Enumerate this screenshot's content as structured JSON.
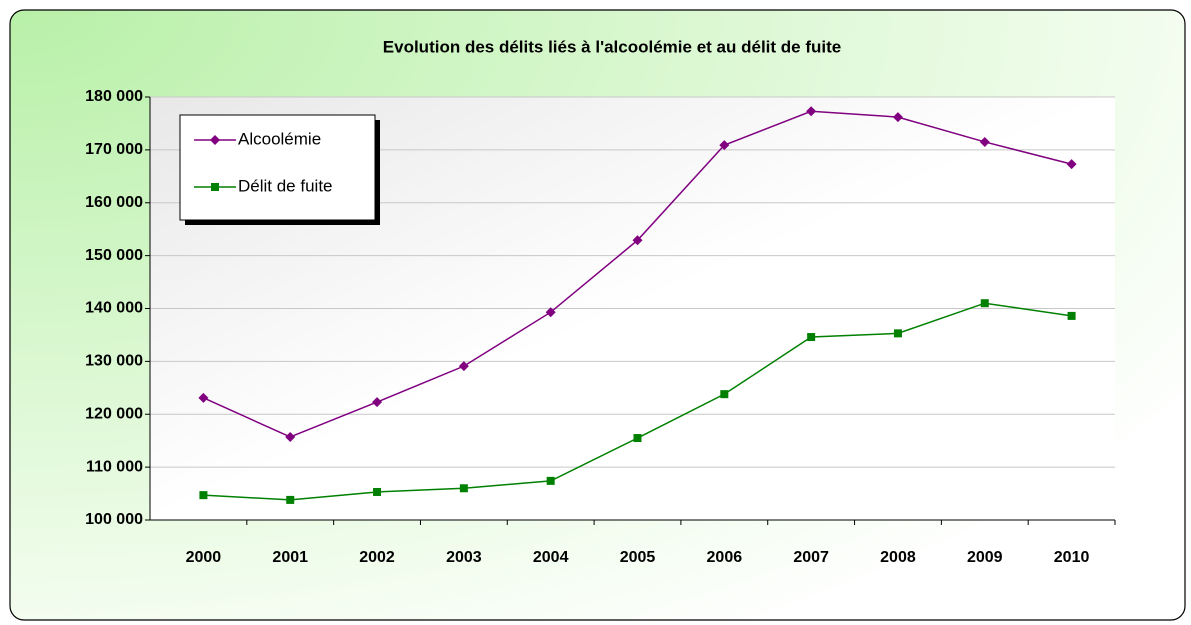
{
  "chart_data": {
    "type": "line",
    "title": "Evolution des délits liés à l'alcoolémie et au délit de fuite",
    "categories": [
      "2000",
      "2001",
      "2002",
      "2003",
      "2004",
      "2005",
      "2006",
      "2007",
      "2008",
      "2009",
      "2010"
    ],
    "series": [
      {
        "name": "Alcoolémie",
        "color": "#800080",
        "marker": "diamond",
        "values": [
          123100,
          115700,
          122300,
          129100,
          139300,
          152900,
          170900,
          177300,
          176200,
          171500,
          167300
        ]
      },
      {
        "name": "Délit de fuite",
        "color": "#008000",
        "marker": "square",
        "values": [
          104700,
          103800,
          105300,
          106000,
          107400,
          115500,
          123800,
          134600,
          135300,
          141000,
          138600
        ]
      }
    ],
    "ylim": [
      100000,
      180000
    ],
    "yticks": [
      {
        "value": 100000,
        "label": "100 000"
      },
      {
        "value": 110000,
        "label": "110 000"
      },
      {
        "value": 120000,
        "label": "120 000"
      },
      {
        "value": 130000,
        "label": "130 000"
      },
      {
        "value": 140000,
        "label": "140 000"
      },
      {
        "value": 150000,
        "label": "150 000"
      },
      {
        "value": 160000,
        "label": "160 000"
      },
      {
        "value": 170000,
        "label": "170 000"
      },
      {
        "value": 180000,
        "label": "180 000"
      }
    ],
    "grid": true,
    "legend": "upper left"
  }
}
